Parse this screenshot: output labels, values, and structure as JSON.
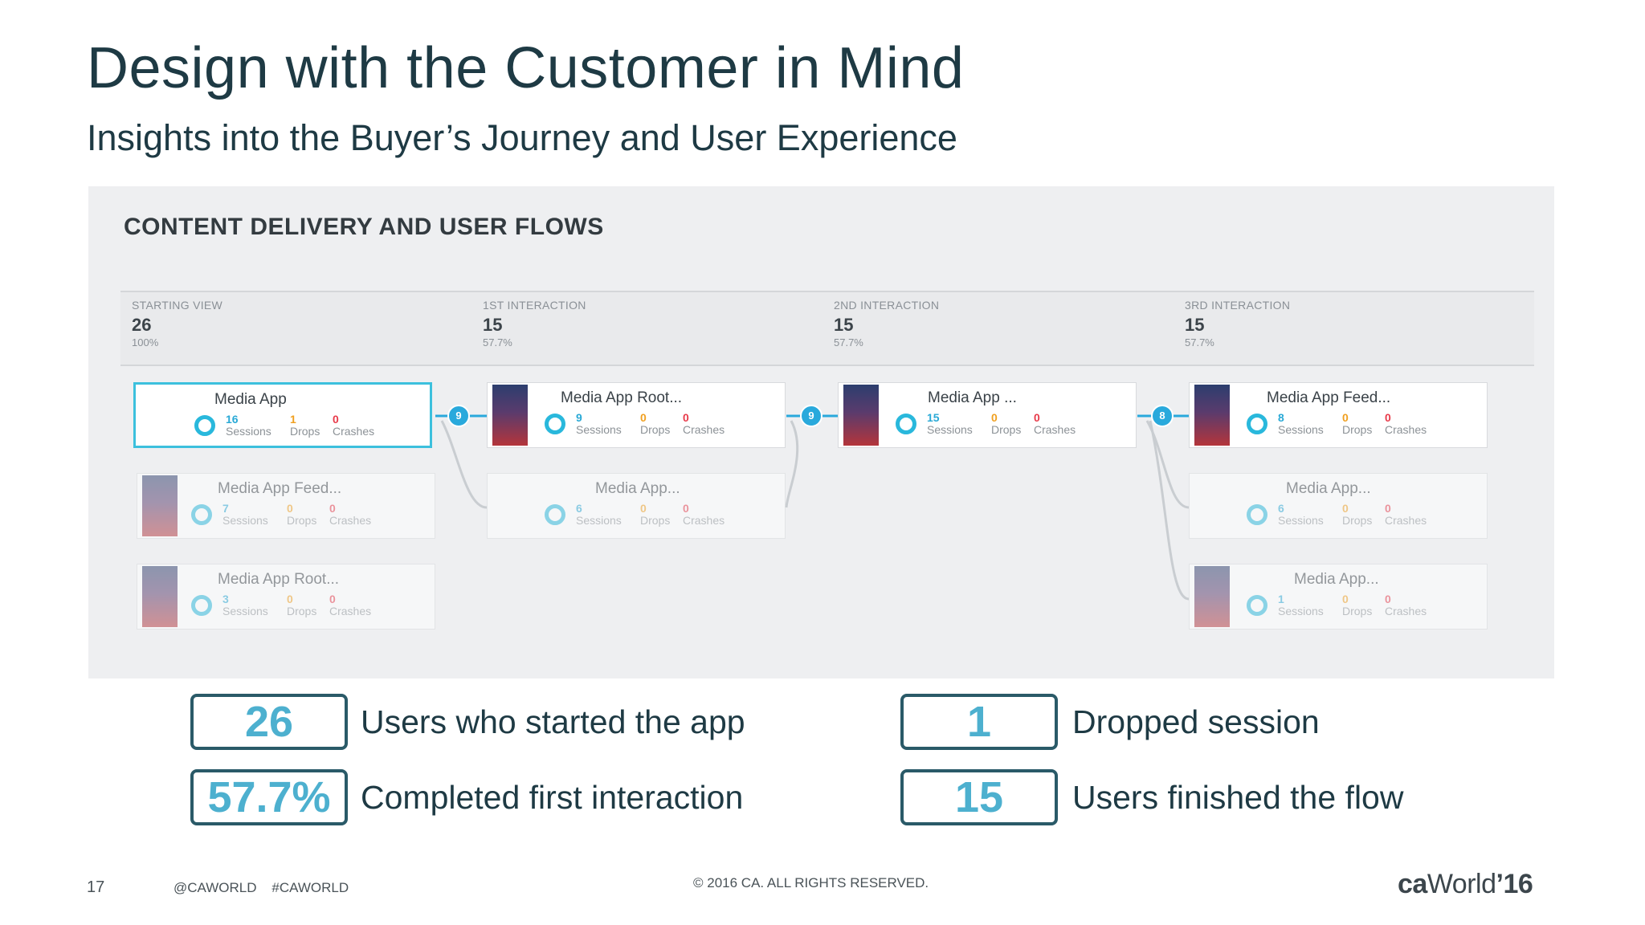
{
  "slide": {
    "title": "Design with the Customer in Mind",
    "subtitle": "Insights into the Buyer’s Journey and User Experience"
  },
  "panel": {
    "title": "CONTENT DELIVERY AND USER FLOWS",
    "stages": [
      {
        "label": "STARTING VIEW",
        "count": "26",
        "pct": "100%"
      },
      {
        "label": "1ST INTERACTION",
        "count": "15",
        "pct": "57.7%"
      },
      {
        "label": "2ND INTERACTION",
        "count": "15",
        "pct": "57.7%"
      },
      {
        "label": "3RD INTERACTION",
        "count": "15",
        "pct": "57.7%"
      }
    ],
    "stat_labels": {
      "sessions": "Sessions",
      "drops": "Drops",
      "crashes": "Crashes"
    },
    "cards": [
      {
        "name": "Media App",
        "sessions": "16",
        "drops": "1",
        "crashes": "0"
      },
      {
        "name": "Media App Feed...",
        "sessions": "7",
        "drops": "0",
        "crashes": "0"
      },
      {
        "name": "Media App Root...",
        "sessions": "3",
        "drops": "0",
        "crashes": "0"
      },
      {
        "name": "Media App Root...",
        "sessions": "9",
        "drops": "0",
        "crashes": "0"
      },
      {
        "name": "Media App...",
        "sessions": "6",
        "drops": "0",
        "crashes": "0"
      },
      {
        "name": "Media App ...",
        "sessions": "15",
        "drops": "0",
        "crashes": "0"
      },
      {
        "name": "Media App Feed...",
        "sessions": "8",
        "drops": "0",
        "crashes": "0"
      },
      {
        "name": "Media App...",
        "sessions": "6",
        "drops": "0",
        "crashes": "0"
      },
      {
        "name": "Media App...",
        "sessions": "1",
        "drops": "0",
        "crashes": "0"
      }
    ],
    "flow_badges": [
      "9",
      "9",
      "8"
    ]
  },
  "stats": [
    {
      "value": "26",
      "label": "Users who started the app"
    },
    {
      "value": "57.7%",
      "label": "Completed first interaction"
    },
    {
      "value": "1",
      "label": "Dropped session"
    },
    {
      "value": "15",
      "label": "Users finished the flow"
    }
  ],
  "footer": {
    "page_number": "17",
    "social": "@CAWORLD    #CAWORLD",
    "copyright": "© 2016 CA. ALL RIGHTS RESERVED.",
    "logo_ca": "ca",
    "logo_world": "World",
    "logo_year": "’16"
  },
  "colors": {
    "accent": "#29b8dc",
    "title": "#1e3a44",
    "box_border": "#2a5a68",
    "box_value": "#4db0cf",
    "drops": "#f0a020",
    "crashes": "#e83a4a"
  }
}
